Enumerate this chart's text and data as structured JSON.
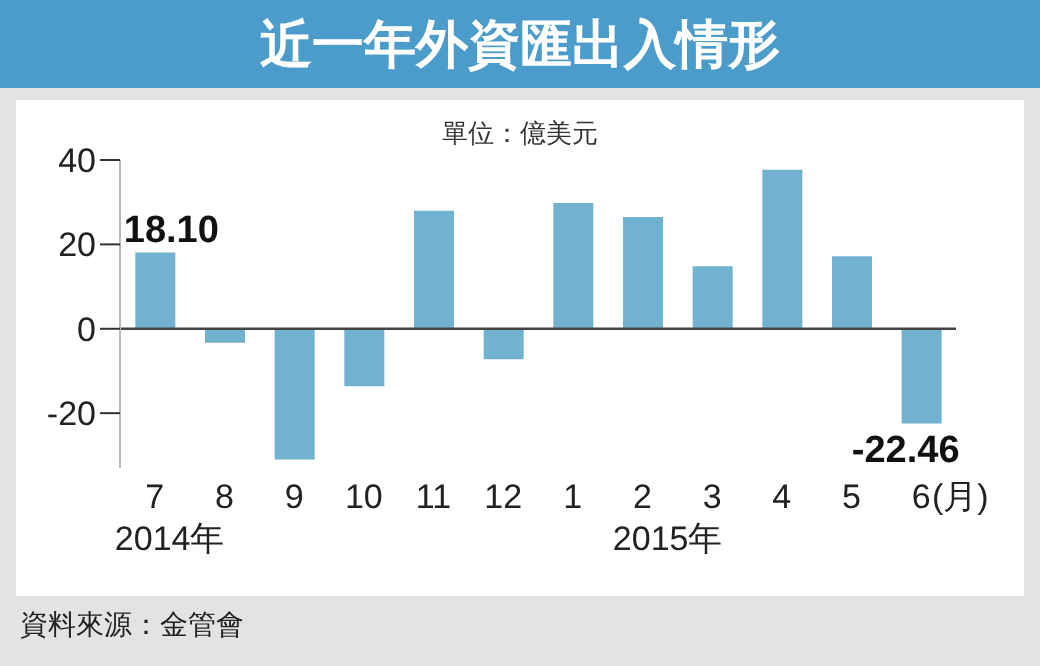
{
  "chart_data": {
    "type": "bar",
    "title": "近一年外資匯出入情形",
    "subtitle": "單位：億美元",
    "xlabel": "(月)",
    "categories": [
      "7",
      "8",
      "9",
      "10",
      "11",
      "12",
      "1",
      "2",
      "3",
      "4",
      "5",
      "6"
    ],
    "values": [
      18.1,
      -3.3,
      -31,
      -13.6,
      28,
      -7.2,
      29.8,
      26.5,
      14.8,
      37.7,
      17.2,
      -22.46
    ],
    "value_labels": [
      "18.10",
      null,
      null,
      null,
      null,
      null,
      null,
      null,
      null,
      null,
      null,
      "-22.46"
    ],
    "color": "#72b2d1",
    "ylim": [
      -33,
      40
    ],
    "yticks": [
      -20,
      0,
      20,
      40
    ],
    "grid": false,
    "ref_lines": [
      {
        "axis": "y",
        "value": 0,
        "color": "#444444"
      }
    ],
    "annotations": [
      "2014年",
      "2015年",
      "資料來源：金管會"
    ]
  }
}
